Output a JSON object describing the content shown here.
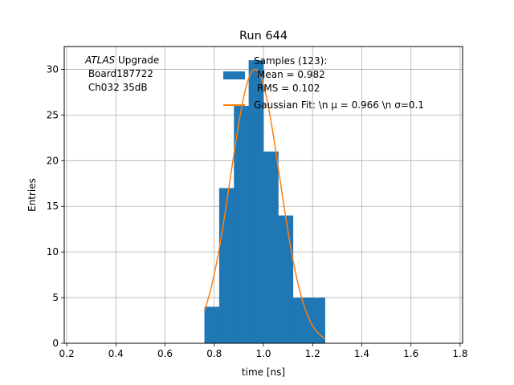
{
  "chart_data": {
    "type": "bar",
    "title": "Run 644",
    "xlabel": "time [ns]",
    "ylabel": "Entries",
    "xlim": [
      0.19,
      1.81
    ],
    "ylim": [
      0,
      32.5
    ],
    "xticks": [
      0.2,
      0.4,
      0.6,
      0.8,
      1.0,
      1.2,
      1.4,
      1.6,
      1.8
    ],
    "yticks": [
      0,
      5,
      10,
      15,
      20,
      25,
      30
    ],
    "grid": true,
    "annotation": {
      "line1_italic": "ATLAS",
      "line1_rest": " Upgrade",
      "line2": " Board187722",
      "line3": " Ch032 35dB"
    },
    "histogram": {
      "name_lines": [
        "Samples (123):",
        "Mean = 0.982",
        "RMS = 0.102"
      ],
      "color": "#1f77b4",
      "bin_edges": [
        0.76,
        0.82,
        0.88,
        0.94,
        1.0,
        1.06,
        1.12,
        1.18,
        1.25
      ],
      "values": [
        4,
        17,
        26,
        31,
        21,
        14,
        5,
        5
      ]
    },
    "fit": {
      "name": "Gaussian Fit: \\n μ = 0.966 \\n σ=0.1",
      "color": "#ff7f0e",
      "mu": 0.966,
      "sigma": 0.1,
      "amplitude": 30,
      "x_range": [
        0.76,
        1.25
      ]
    },
    "legend_position": "top-right"
  }
}
